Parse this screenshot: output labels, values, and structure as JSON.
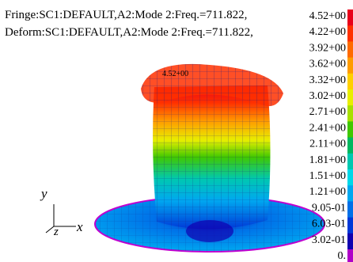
{
  "header": {
    "lines": [
      "Fringe:SC1:DEFAULT,A2:Mode 2:Freq.=711.822,",
      "Deform:SC1:DEFAULT,A2:Mode 2:Freq.=711.822,"
    ]
  },
  "annotation": "4.52+00",
  "axes": {
    "y": "y",
    "z": "z",
    "x": "x"
  },
  "legend": [
    {
      "label": "4.52+00",
      "color": "#e8001a"
    },
    {
      "label": "4.22+00",
      "color": "#ff3000"
    },
    {
      "label": "3.92+00",
      "color": "#ff6a00"
    },
    {
      "label": "3.62+00",
      "color": "#ff9c00"
    },
    {
      "label": "3.32+00",
      "color": "#ffd000"
    },
    {
      "label": "3.02+00",
      "color": "#e8ee00"
    },
    {
      "label": "2.71+00",
      "color": "#a8e000"
    },
    {
      "label": "2.41+00",
      "color": "#40c800"
    },
    {
      "label": "2.11+00",
      "color": "#00b860"
    },
    {
      "label": "1.81+00",
      "color": "#00c8b0"
    },
    {
      "label": "1.51+00",
      "color": "#00d8e8"
    },
    {
      "label": "1.21+00",
      "color": "#00a8f0"
    },
    {
      "label": "9.05-01",
      "color": "#0070e8"
    },
    {
      "label": "6.03-01",
      "color": "#0038d8"
    },
    {
      "label": "3.02-01",
      "color": "#1000b0"
    },
    {
      "label": "0.",
      "color": "#b000c8"
    }
  ]
}
